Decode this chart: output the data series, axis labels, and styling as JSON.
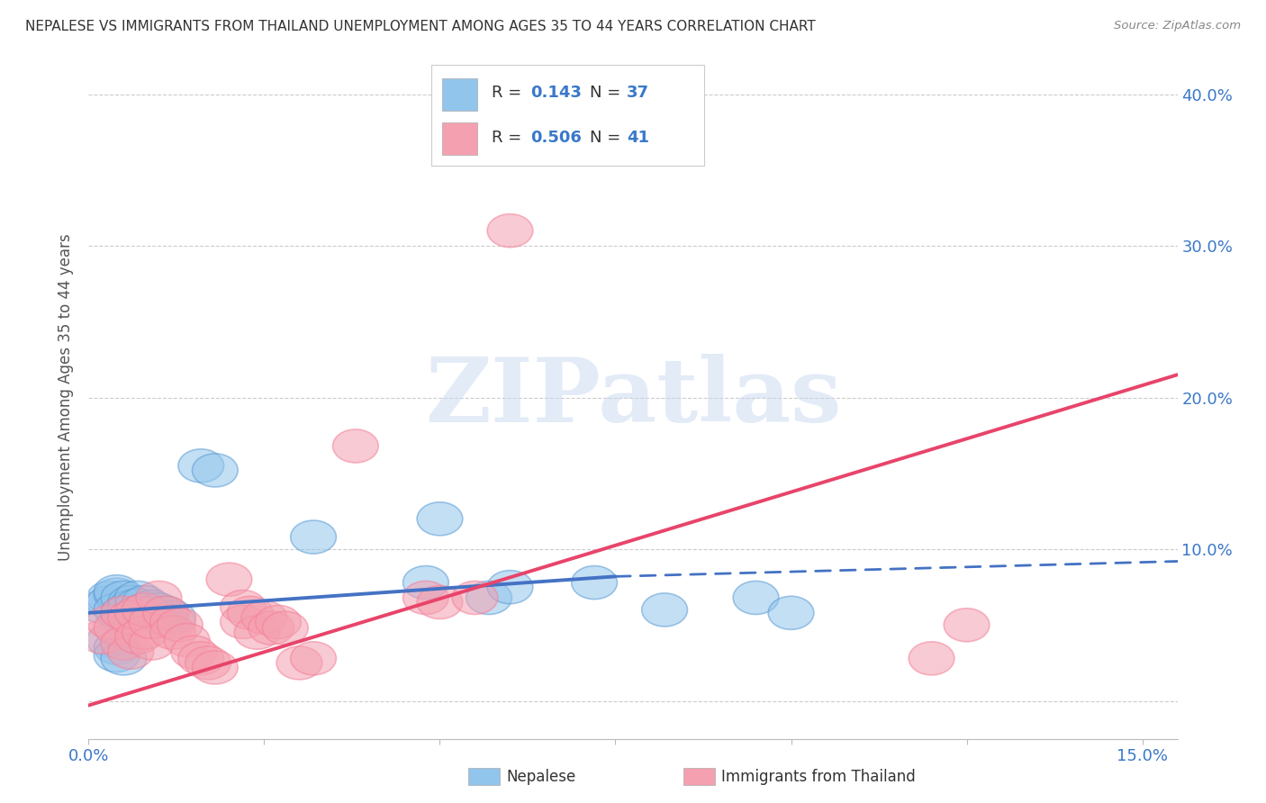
{
  "title": "NEPALESE VS IMMIGRANTS FROM THAILAND UNEMPLOYMENT AMONG AGES 35 TO 44 YEARS CORRELATION CHART",
  "source": "Source: ZipAtlas.com",
  "ylabel": "Unemployment Among Ages 35 to 44 years",
  "xlim": [
    0.0,
    0.155
  ],
  "ylim": [
    -0.025,
    0.425
  ],
  "xticks": [
    0.0,
    0.025,
    0.05,
    0.075,
    0.1,
    0.125,
    0.15
  ],
  "xticklabels": [
    "0.0%",
    "",
    "",
    "",
    "",
    "",
    "15.0%"
  ],
  "yticks_right": [
    0.0,
    0.1,
    0.2,
    0.3,
    0.4
  ],
  "yticklabels_right": [
    "",
    "10.0%",
    "20.0%",
    "30.0%",
    "40.0%"
  ],
  "grid_yticks": [
    0.0,
    0.1,
    0.2,
    0.3,
    0.4
  ],
  "nepalese_color": "#92C5EC",
  "thailand_color": "#F4A0B0",
  "nepalese_edge_color": "#5B9BD5",
  "thailand_edge_color": "#F48099",
  "nepalese_line_color": "#4472C4",
  "thailand_line_color": "#E8446A",
  "nepalese_scatter": [
    [
      0.002,
      0.062
    ],
    [
      0.003,
      0.068
    ],
    [
      0.003,
      0.065
    ],
    [
      0.004,
      0.07
    ],
    [
      0.004,
      0.072
    ],
    [
      0.004,
      0.06
    ],
    [
      0.005,
      0.068
    ],
    [
      0.005,
      0.055
    ],
    [
      0.005,
      0.058
    ],
    [
      0.006,
      0.065
    ],
    [
      0.006,
      0.062
    ],
    [
      0.007,
      0.068
    ],
    [
      0.007,
      0.063
    ],
    [
      0.007,
      0.058
    ],
    [
      0.008,
      0.065
    ],
    [
      0.008,
      0.06
    ],
    [
      0.009,
      0.062
    ],
    [
      0.009,
      0.058
    ],
    [
      0.01,
      0.06
    ],
    [
      0.01,
      0.055
    ],
    [
      0.011,
      0.058
    ],
    [
      0.012,
      0.055
    ],
    [
      0.003,
      0.04
    ],
    [
      0.004,
      0.035
    ],
    [
      0.004,
      0.03
    ],
    [
      0.005,
      0.028
    ],
    [
      0.016,
      0.155
    ],
    [
      0.018,
      0.152
    ],
    [
      0.032,
      0.108
    ],
    [
      0.048,
      0.078
    ],
    [
      0.05,
      0.12
    ],
    [
      0.057,
      0.068
    ],
    [
      0.06,
      0.075
    ],
    [
      0.072,
      0.078
    ],
    [
      0.082,
      0.06
    ],
    [
      0.095,
      0.068
    ],
    [
      0.1,
      0.058
    ]
  ],
  "thailand_scatter": [
    [
      0.002,
      0.042
    ],
    [
      0.003,
      0.052
    ],
    [
      0.004,
      0.048
    ],
    [
      0.005,
      0.038
    ],
    [
      0.005,
      0.058
    ],
    [
      0.006,
      0.032
    ],
    [
      0.006,
      0.055
    ],
    [
      0.007,
      0.042
    ],
    [
      0.007,
      0.058
    ],
    [
      0.008,
      0.045
    ],
    [
      0.008,
      0.06
    ],
    [
      0.009,
      0.038
    ],
    [
      0.009,
      0.052
    ],
    [
      0.01,
      0.068
    ],
    [
      0.011,
      0.058
    ],
    [
      0.012,
      0.052
    ],
    [
      0.012,
      0.045
    ],
    [
      0.013,
      0.05
    ],
    [
      0.014,
      0.04
    ],
    [
      0.015,
      0.032
    ],
    [
      0.016,
      0.028
    ],
    [
      0.017,
      0.025
    ],
    [
      0.018,
      0.022
    ],
    [
      0.02,
      0.08
    ],
    [
      0.022,
      0.062
    ],
    [
      0.022,
      0.052
    ],
    [
      0.023,
      0.058
    ],
    [
      0.024,
      0.045
    ],
    [
      0.025,
      0.055
    ],
    [
      0.026,
      0.048
    ],
    [
      0.027,
      0.052
    ],
    [
      0.028,
      0.048
    ],
    [
      0.03,
      0.025
    ],
    [
      0.032,
      0.028
    ],
    [
      0.038,
      0.168
    ],
    [
      0.048,
      0.068
    ],
    [
      0.05,
      0.065
    ],
    [
      0.055,
      0.068
    ],
    [
      0.06,
      0.31
    ],
    [
      0.12,
      0.028
    ],
    [
      0.125,
      0.05
    ]
  ],
  "nepalese_line_solid": [
    [
      0.0,
      0.058
    ],
    [
      0.075,
      0.082
    ]
  ],
  "nepalese_line_dashed": [
    [
      0.075,
      0.082
    ],
    [
      0.155,
      0.092
    ]
  ],
  "thailand_line": [
    [
      -0.005,
      -0.01
    ],
    [
      0.155,
      0.215
    ]
  ],
  "watermark_text": "ZIPatlas",
  "watermark_color": "#C8D8F0",
  "watermark_alpha": 0.5
}
